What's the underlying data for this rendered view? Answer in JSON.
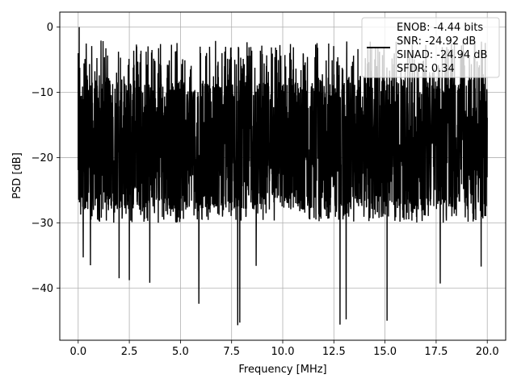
{
  "chart_data": {
    "type": "line",
    "xlabel": "Frequency [MHz]",
    "ylabel": "PSD [dB]",
    "xlim": [
      -0.9,
      20.9
    ],
    "ylim": [
      -48,
      2.3
    ],
    "x_ticks": [
      0.0,
      2.5,
      5.0,
      7.5,
      10.0,
      12.5,
      15.0,
      17.5,
      20.0
    ],
    "x_tick_labels": [
      "0.0",
      "2.5",
      "5.0",
      "7.5",
      "10.0",
      "12.5",
      "15.0",
      "17.5",
      "20.0"
    ],
    "y_ticks": [
      0,
      -10,
      -20,
      -30,
      -40
    ],
    "y_tick_labels": [
      "0",
      "−10",
      "−20",
      "−30",
      "−40"
    ],
    "grid": true,
    "legend_position": "top-right",
    "legend_lines": [
      "ENOB: -4.44 bits",
      "SNR: -24.92 dB",
      "SINAD: -24.94 dB",
      "SFDR: 0.34"
    ],
    "series": [
      {
        "color": "#000000",
        "x_range": [
          0.0,
          20.0
        ],
        "peak": {
          "x": 0.05,
          "y": 0.0
        },
        "notable_dips": [
          {
            "x": 0.25,
            "y": -35.3
          },
          {
            "x": 0.6,
            "y": -36.5
          },
          {
            "x": 2.0,
            "y": -38.5
          },
          {
            "x": 2.5,
            "y": -38.8
          },
          {
            "x": 3.5,
            "y": -39.2
          },
          {
            "x": 5.9,
            "y": -42.4
          },
          {
            "x": 7.8,
            "y": -45.7
          },
          {
            "x": 7.9,
            "y": -45.3
          },
          {
            "x": 8.7,
            "y": -36.6
          },
          {
            "x": 12.8,
            "y": -45.6
          },
          {
            "x": 13.1,
            "y": -44.8
          },
          {
            "x": 15.1,
            "y": -45.0
          },
          {
            "x": 17.7,
            "y": -39.3
          },
          {
            "x": 19.7,
            "y": -36.7
          }
        ],
        "upper_envelope_db": [
          -4,
          -2
        ],
        "typical_band_db": [
          -28,
          -8
        ],
        "lower_envelope_db": [
          -30,
          -26
        ]
      }
    ]
  }
}
